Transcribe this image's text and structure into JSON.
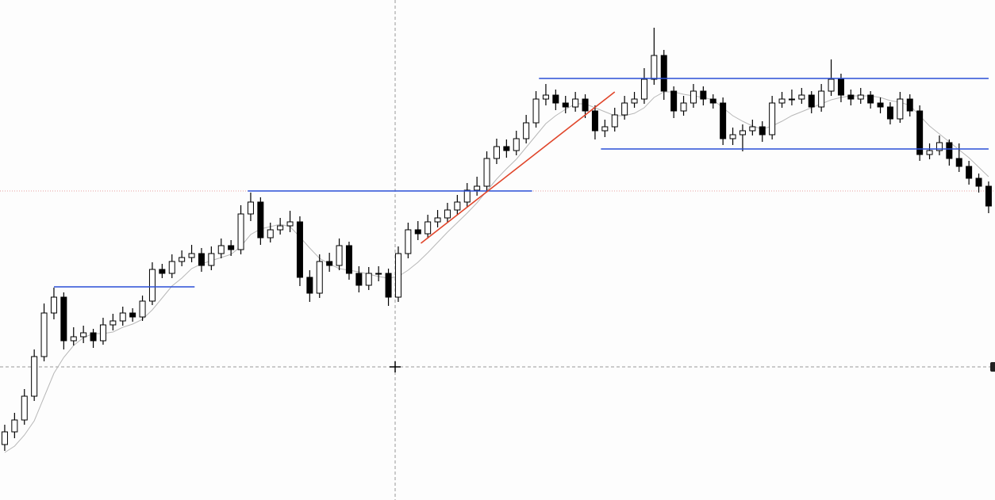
{
  "chart_data": {
    "type": "candlestick",
    "xlim": [
      -0.48,
      100.65
    ],
    "ylim": [
      0,
      631
    ],
    "up_color": "#ffffff",
    "down_color": "#000000",
    "ma_color": "#b8b8b8",
    "level_color": "#2a4fd6",
    "trend_color": "#e0452a",
    "candles": [
      [
        70,
        95,
        62,
        86
      ],
      [
        86,
        110,
        78,
        101
      ],
      [
        101,
        140,
        95,
        131
      ],
      [
        131,
        190,
        125,
        181
      ],
      [
        181,
        248,
        175,
        236
      ],
      [
        236,
        268,
        228,
        256
      ],
      [
        256,
        262,
        190,
        201
      ],
      [
        201,
        218,
        195,
        206
      ],
      [
        206,
        220,
        198,
        211
      ],
      [
        211,
        216,
        192,
        201
      ],
      [
        201,
        230,
        196,
        221
      ],
      [
        221,
        235,
        214,
        226
      ],
      [
        226,
        244,
        220,
        236
      ],
      [
        236,
        242,
        225,
        231
      ],
      [
        231,
        258,
        226,
        251
      ],
      [
        251,
        300,
        246,
        291
      ],
      [
        291,
        298,
        280,
        286
      ],
      [
        286,
        310,
        280,
        301
      ],
      [
        301,
        315,
        295,
        306
      ],
      [
        306,
        322,
        300,
        311
      ],
      [
        311,
        318,
        288,
        296
      ],
      [
        296,
        320,
        290,
        311
      ],
      [
        311,
        330,
        305,
        321
      ],
      [
        321,
        328,
        308,
        316
      ],
      [
        316,
        372,
        310,
        361
      ],
      [
        361,
        388,
        352,
        376
      ],
      [
        376,
        382,
        322,
        331
      ],
      [
        331,
        350,
        325,
        341
      ],
      [
        341,
        356,
        335,
        346
      ],
      [
        346,
        365,
        338,
        351
      ],
      [
        351,
        358,
        270,
        281
      ],
      [
        281,
        290,
        250,
        261
      ],
      [
        261,
        310,
        255,
        301
      ],
      [
        301,
        312,
        288,
        296
      ],
      [
        296,
        330,
        290,
        321
      ],
      [
        321,
        326,
        278,
        286
      ],
      [
        286,
        295,
        262,
        271
      ],
      [
        271,
        294,
        265,
        286
      ],
      [
        286,
        295,
        276,
        286
      ],
      [
        286,
        292,
        245,
        256
      ],
      [
        256,
        320,
        250,
        311
      ],
      [
        311,
        350,
        305,
        341
      ],
      [
        341,
        352,
        328,
        336
      ],
      [
        336,
        360,
        330,
        351
      ],
      [
        351,
        366,
        344,
        356
      ],
      [
        356,
        375,
        350,
        366
      ],
      [
        366,
        385,
        360,
        376
      ],
      [
        376,
        400,
        370,
        391
      ],
      [
        391,
        408,
        384,
        396
      ],
      [
        396,
        440,
        390,
        431
      ],
      [
        431,
        456,
        424,
        446
      ],
      [
        446,
        455,
        432,
        441
      ],
      [
        441,
        466,
        435,
        456
      ],
      [
        456,
        486,
        450,
        476
      ],
      [
        476,
        516,
        470,
        506
      ],
      [
        506,
        525,
        498,
        511
      ],
      [
        511,
        518,
        492,
        501
      ],
      [
        501,
        510,
        488,
        496
      ],
      [
        496,
        515,
        490,
        506
      ],
      [
        506,
        512,
        482,
        491
      ],
      [
        491,
        498,
        455,
        466
      ],
      [
        466,
        480,
        458,
        471
      ],
      [
        471,
        495,
        465,
        486
      ],
      [
        486,
        510,
        480,
        501
      ],
      [
        501,
        515,
        495,
        506
      ],
      [
        506,
        545,
        500,
        531
      ],
      [
        531,
        596,
        524,
        561
      ],
      [
        561,
        568,
        505,
        516
      ],
      [
        516,
        522,
        482,
        491
      ],
      [
        491,
        510,
        485,
        501
      ],
      [
        501,
        525,
        495,
        516
      ],
      [
        516,
        522,
        498,
        506
      ],
      [
        506,
        512,
        494,
        501
      ],
      [
        501,
        508,
        448,
        456
      ],
      [
        456,
        470,
        448,
        461
      ],
      [
        461,
        474,
        440,
        466
      ],
      [
        466,
        480,
        460,
        471
      ],
      [
        471,
        478,
        452,
        461
      ],
      [
        461,
        510,
        455,
        501
      ],
      [
        501,
        515,
        495,
        506
      ],
      [
        506,
        518,
        498,
        506
      ],
      [
        506,
        520,
        500,
        511
      ],
      [
        511,
        516,
        488,
        496
      ],
      [
        496,
        525,
        490,
        516
      ],
      [
        516,
        556,
        510,
        531
      ],
      [
        531,
        538,
        502,
        511
      ],
      [
        511,
        518,
        498,
        506
      ],
      [
        506,
        520,
        500,
        511
      ],
      [
        511,
        516,
        494,
        501
      ],
      [
        501,
        508,
        488,
        496
      ],
      [
        496,
        502,
        474,
        481
      ],
      [
        481,
        515,
        476,
        506
      ],
      [
        506,
        512,
        484,
        491
      ],
      [
        491,
        498,
        428,
        436
      ],
      [
        436,
        450,
        430,
        441
      ],
      [
        441,
        460,
        435,
        451
      ],
      [
        451,
        455,
        422,
        431
      ],
      [
        431,
        450,
        414,
        421
      ],
      [
        421,
        428,
        398,
        406
      ],
      [
        406,
        412,
        388,
        396
      ],
      [
        396,
        402,
        362,
        371
      ]
    ],
    "ma": [
      60,
      68,
      82,
      100,
      130,
      160,
      180,
      195,
      205,
      210,
      210,
      212,
      218,
      222,
      228,
      240,
      255,
      270,
      280,
      292,
      298,
      302,
      306,
      310,
      320,
      335,
      342,
      345,
      348,
      345,
      332,
      318,
      305,
      298,
      292,
      290,
      288,
      285,
      282,
      280,
      282,
      290,
      300,
      312,
      325,
      338,
      350,
      362,
      375,
      390,
      405,
      418,
      430,
      445,
      460,
      475,
      485,
      493,
      500,
      500,
      495,
      490,
      485,
      485,
      488,
      495,
      508,
      515,
      515,
      512,
      510,
      508,
      505,
      495,
      485,
      478,
      472,
      468,
      472,
      478,
      485,
      490,
      495,
      500,
      505,
      508,
      510,
      510,
      510,
      508,
      504,
      502,
      498,
      485,
      472,
      462,
      452,
      442,
      432,
      420,
      408
    ],
    "levels": [
      {
        "value": 269,
        "x": [
          5,
          19.3
        ]
      },
      {
        "value": 390,
        "x": [
          24.7,
          53.6
        ]
      },
      {
        "value": 532,
        "x": [
          54.3,
          100
        ]
      },
      {
        "value": 443,
        "x": [
          60.6,
          100
        ]
      }
    ],
    "trendline": {
      "x": [
        42.3,
        62
      ],
      "y": [
        324,
        515
      ]
    }
  }
}
